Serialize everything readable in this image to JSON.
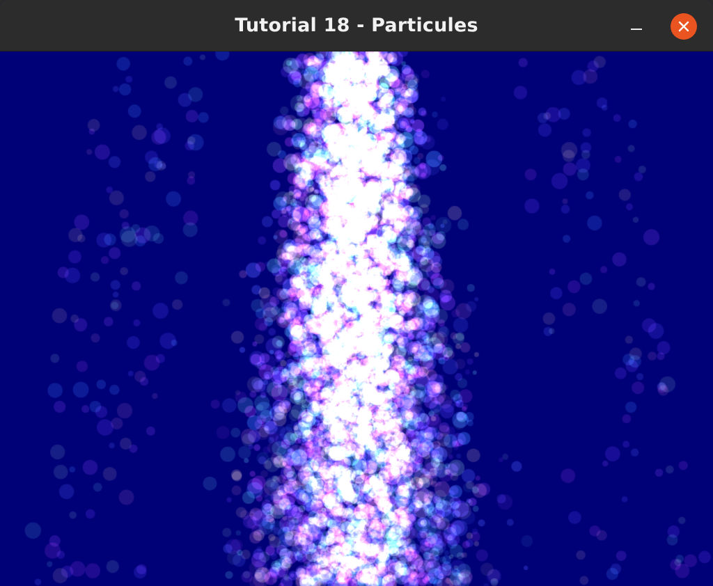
{
  "window": {
    "title": "Tutorial 18 - Particules"
  },
  "controls": {
    "minimize_icon": "minimize-icon",
    "close_icon": "close-icon",
    "close_color": "#e95420"
  },
  "scene": {
    "background_color": "#000077",
    "content": "particle-fountain"
  }
}
